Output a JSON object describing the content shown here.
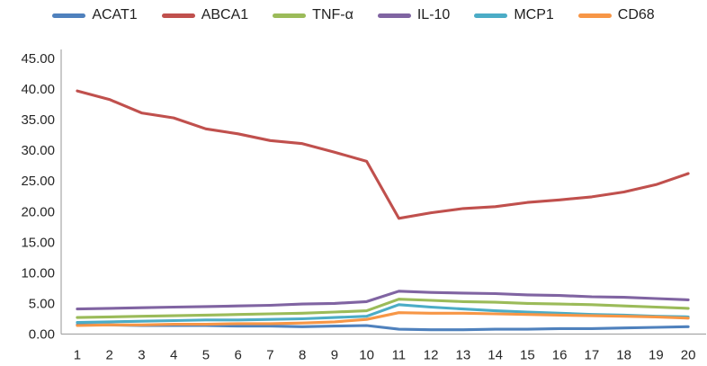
{
  "chart_data": {
    "type": "line",
    "title": "",
    "xlabel": "",
    "ylabel": "",
    "ylim": [
      0,
      45
    ],
    "y_tick_step": 5,
    "y_ticks": [
      "0.00",
      "5.00",
      "10.00",
      "15.00",
      "20.00",
      "25.00",
      "30.00",
      "35.00",
      "40.00",
      "45.00"
    ],
    "categories": [
      "1",
      "2",
      "3",
      "4",
      "5",
      "6",
      "7",
      "8",
      "9",
      "10",
      "11",
      "12",
      "13",
      "14",
      "15",
      "16",
      "17",
      "18",
      "19",
      "20"
    ],
    "grid": false,
    "legend_position": "top",
    "axis_color": "#A6A6A6",
    "tick_label_color": "#262626",
    "series": [
      {
        "name": "ACAT1",
        "color": "#4F81BD",
        "values": [
          1.5,
          1.5,
          1.4,
          1.4,
          1.4,
          1.3,
          1.3,
          1.2,
          1.3,
          1.4,
          0.8,
          0.7,
          0.7,
          0.8,
          0.8,
          0.9,
          0.9,
          1.0,
          1.1,
          1.2
        ]
      },
      {
        "name": "ABCA1",
        "color": "#C0504D",
        "values": [
          39.7,
          38.3,
          36.1,
          35.3,
          33.5,
          32.7,
          31.6,
          31.1,
          29.7,
          28.2,
          18.9,
          19.8,
          20.5,
          20.8,
          21.5,
          21.9,
          22.4,
          23.2,
          24.4,
          26.2
        ]
      },
      {
        "name": "TNF-α",
        "color": "#9BBB59",
        "values": [
          2.7,
          2.8,
          2.9,
          3.0,
          3.1,
          3.2,
          3.3,
          3.4,
          3.6,
          3.8,
          5.7,
          5.5,
          5.3,
          5.2,
          5.0,
          4.9,
          4.8,
          4.6,
          4.4,
          4.2
        ]
      },
      {
        "name": "IL-10",
        "color": "#8064A2",
        "values": [
          4.1,
          4.2,
          4.3,
          4.4,
          4.5,
          4.6,
          4.7,
          4.9,
          5.0,
          5.3,
          7.0,
          6.8,
          6.7,
          6.6,
          6.4,
          6.3,
          6.1,
          6.0,
          5.8,
          5.6
        ]
      },
      {
        "name": "MCP1",
        "color": "#4BACC6",
        "values": [
          1.9,
          2.0,
          2.1,
          2.2,
          2.3,
          2.3,
          2.4,
          2.5,
          2.7,
          2.9,
          4.8,
          4.4,
          4.1,
          3.8,
          3.6,
          3.4,
          3.2,
          3.1,
          2.9,
          2.8
        ]
      },
      {
        "name": "CD68",
        "color": "#F79646",
        "values": [
          1.4,
          1.5,
          1.5,
          1.6,
          1.6,
          1.7,
          1.7,
          1.8,
          2.0,
          2.4,
          3.5,
          3.4,
          3.4,
          3.3,
          3.2,
          3.1,
          3.0,
          2.9,
          2.8,
          2.6
        ]
      }
    ]
  }
}
